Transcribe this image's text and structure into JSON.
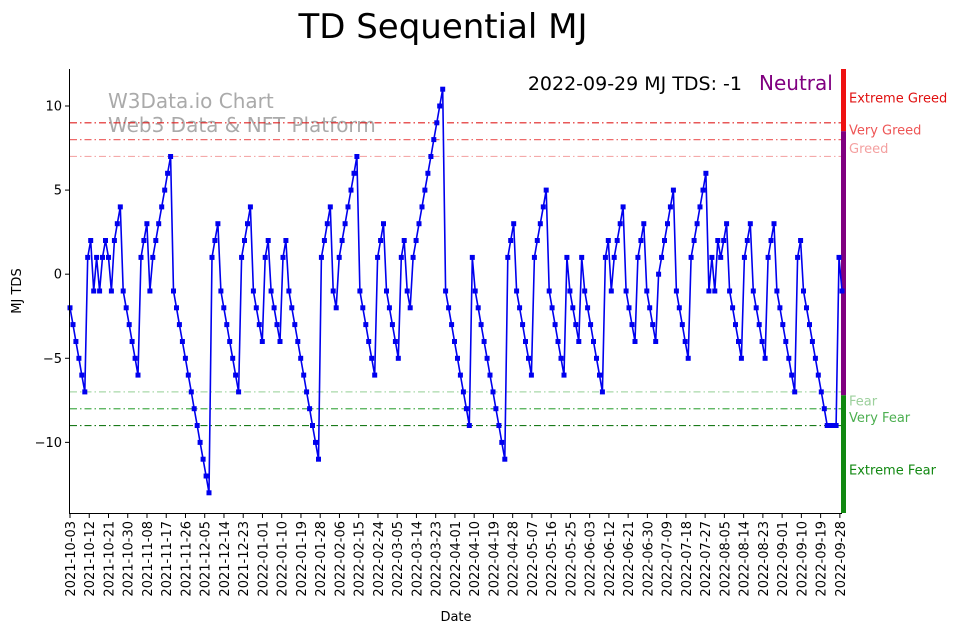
{
  "chart_data": {
    "type": "line",
    "title": "TD Sequential MJ",
    "xlabel": "Date",
    "ylabel": "MJ TDS",
    "ylim": [
      -14.2,
      12.2
    ],
    "yticks": [
      10,
      5,
      0,
      -5,
      -10
    ],
    "x_start": "2021-10-03",
    "x_end": "2022-09-29",
    "grid": false,
    "series_color": "#0000ee",
    "date_ticks": [
      "2021-10-03",
      "2021-10-12",
      "2021-10-21",
      "2021-10-30",
      "2021-11-08",
      "2021-11-17",
      "2021-11-26",
      "2021-12-05",
      "2021-12-14",
      "2021-12-23",
      "2022-01-01",
      "2022-01-10",
      "2022-01-19",
      "2022-01-28",
      "2022-02-06",
      "2022-02-15",
      "2022-02-24",
      "2022-03-05",
      "2022-03-14",
      "2022-03-23",
      "2022-04-01",
      "2022-04-10",
      "2022-04-19",
      "2022-04-28",
      "2022-05-07",
      "2022-05-16",
      "2022-05-25",
      "2022-06-03",
      "2022-06-12",
      "2022-06-21",
      "2022-06-30",
      "2022-07-09",
      "2022-07-18",
      "2022-07-27",
      "2022-08-05",
      "2022-08-14",
      "2022-08-23",
      "2022-09-01",
      "2022-09-10",
      "2022-09-19",
      "2022-09-28"
    ],
    "series": [
      {
        "name": "MJ TDS",
        "values": [
          -2,
          -3,
          -4,
          -5,
          -6,
          -7,
          1,
          2,
          -1,
          1,
          -1,
          1,
          2,
          1,
          -1,
          2,
          3,
          4,
          -1,
          -2,
          -3,
          -4,
          -5,
          -6,
          1,
          2,
          3,
          -1,
          1,
          2,
          3,
          4,
          5,
          6,
          7,
          -1,
          -2,
          -3,
          -4,
          -5,
          -6,
          -7,
          -8,
          -9,
          -10,
          -11,
          -12,
          -13,
          1,
          2,
          3,
          -1,
          -2,
          -3,
          -4,
          -5,
          -6,
          -7,
          1,
          2,
          3,
          4,
          -1,
          -2,
          -3,
          -4,
          1,
          2,
          -1,
          -2,
          -3,
          -4,
          1,
          2,
          -1,
          -2,
          -3,
          -4,
          -5,
          -6,
          -7,
          -8,
          -9,
          -10,
          -11,
          1,
          2,
          3,
          4,
          -1,
          -2,
          1,
          2,
          3,
          4,
          5,
          6,
          7,
          -1,
          -2,
          -3,
          -4,
          -5,
          -6,
          1,
          2,
          3,
          -1,
          -2,
          -3,
          -4,
          -5,
          1,
          2,
          -1,
          -2,
          1,
          2,
          3,
          4,
          5,
          6,
          7,
          8,
          9,
          10,
          11,
          -1,
          -2,
          -3,
          -4,
          -5,
          -6,
          -7,
          -8,
          -9,
          1,
          -1,
          -2,
          -3,
          -4,
          -5,
          -6,
          -7,
          -8,
          -9,
          -10,
          -11,
          1,
          2,
          3,
          -1,
          -2,
          -3,
          -4,
          -5,
          -6,
          1,
          2,
          3,
          4,
          5,
          -1,
          -2,
          -3,
          -4,
          -5,
          -6,
          1,
          -1,
          -2,
          -3,
          -4,
          1,
          -1,
          -2,
          -3,
          -4,
          -5,
          -6,
          -7,
          1,
          2,
          -1,
          1,
          2,
          3,
          4,
          -1,
          -2,
          -3,
          -4,
          1,
          2,
          3,
          -1,
          -2,
          -3,
          -4,
          0,
          1,
          2,
          3,
          4,
          5,
          -1,
          -2,
          -3,
          -4,
          -5,
          1,
          2,
          3,
          4,
          5,
          6,
          -1,
          1,
          -1,
          2,
          1,
          2,
          3,
          -1,
          -2,
          -3,
          -4,
          -5,
          1,
          2,
          3,
          -1,
          -2,
          -3,
          -4,
          -5,
          1,
          2,
          3,
          -1,
          -2,
          -3,
          -4,
          -5,
          -6,
          -7,
          1,
          2,
          -1,
          -2,
          -3,
          -4,
          -5,
          -6,
          -7,
          -8,
          -9,
          -9,
          -9,
          -9,
          1,
          -1
        ]
      }
    ],
    "threshold_lines": [
      {
        "value": 9,
        "label": "Extreme Greed",
        "color": "#e02020"
      },
      {
        "value": 8,
        "label": "Very Greed",
        "color": "#ee6a6a"
      },
      {
        "value": 7,
        "label": "Greed",
        "color": "#f4aaaa"
      },
      {
        "value": -7,
        "label": "Fear",
        "color": "#a8d8a8"
      },
      {
        "value": -8,
        "label": "Very Fear",
        "color": "#4caf50"
      },
      {
        "value": -9,
        "label": "Extreme Fear",
        "color": "#1a7a1a"
      }
    ],
    "sentiment_bar": [
      {
        "from": 8.5,
        "to": 12.2,
        "color": "#ee1111"
      },
      {
        "from": -7.2,
        "to": 8.5,
        "color": "#800080"
      },
      {
        "from": -14.2,
        "to": -7.2,
        "color": "#118811"
      }
    ],
    "sentiment_labels": [
      {
        "text": "Extreme Greed",
        "value": 10.5,
        "color": "#e01010"
      },
      {
        "text": "Very Greed",
        "value": 8.6,
        "color": "#ee5555"
      },
      {
        "text": "Greed",
        "value": 7.5,
        "color": "#f4a0a0"
      },
      {
        "text": "Fear",
        "value": -7.5,
        "color": "#9cd09c"
      },
      {
        "text": "Very Fear",
        "value": -8.5,
        "color": "#4caf50"
      },
      {
        "text": "Extreme Fear",
        "value": -11.6,
        "color": "#118811"
      }
    ],
    "status": {
      "text": "2022-09-29 MJ TDS: -1",
      "state": "Neutral",
      "state_color": "#800080"
    },
    "watermark": [
      "W3Data.io Chart",
      "Web3 Data & NFT Platform"
    ]
  }
}
